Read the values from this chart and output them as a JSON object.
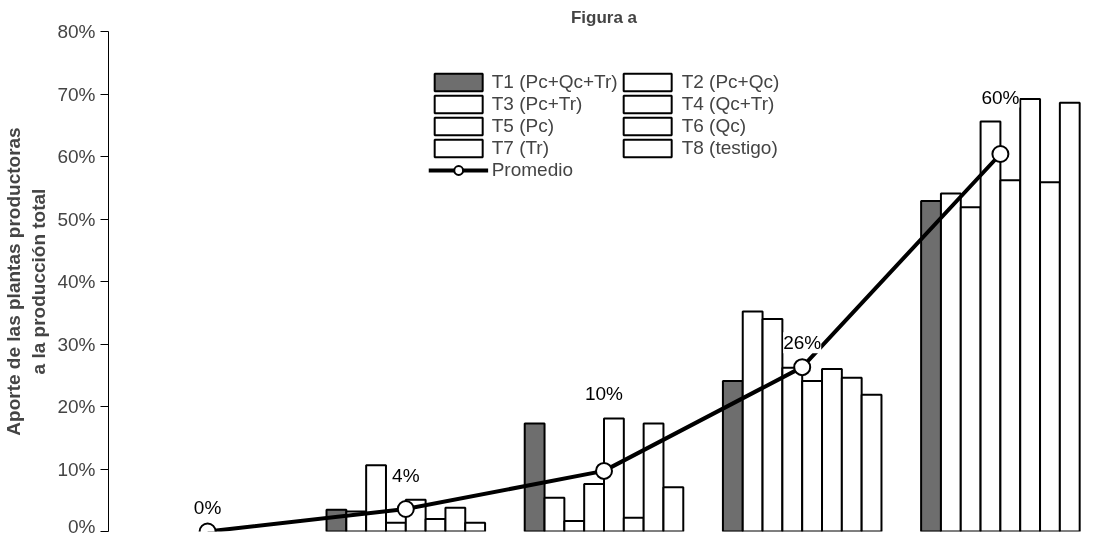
{
  "chart_data": {
    "type": "bar",
    "title": "Figura a",
    "ylabel": "Aporte de las plantas productoras\na la producción total",
    "categories": [
      null,
      null,
      null,
      null,
      null
    ],
    "series": [
      {
        "name": "T1 (Pc+Qc+Tr)",
        "color": "#6e6e6e",
        "values": [
          null,
          3.5,
          17.3,
          24.1,
          52.9
        ]
      },
      {
        "name": "T2 (Pc+Qc)",
        "color": "#ffffff",
        "values": [
          null,
          3.2,
          5.4,
          35.2,
          54.1
        ]
      },
      {
        "name": "T3 (Pc+Tr)",
        "color": "#ffffff",
        "values": [
          null,
          10.6,
          1.7,
          34.0,
          51.9
        ]
      },
      {
        "name": "T4 (Qc+Tr)",
        "color": "#ffffff",
        "values": [
          null,
          1.4,
          7.6,
          26.2,
          65.6
        ]
      },
      {
        "name": "T5 (Pc)",
        "color": "#ffffff",
        "values": [
          null,
          5.1,
          18.1,
          24.1,
          56.2
        ]
      },
      {
        "name": "T6 (Qc)",
        "color": "#ffffff",
        "values": [
          null,
          2.0,
          2.2,
          26.0,
          69.2
        ]
      },
      {
        "name": "T7 (Tr)",
        "color": "#ffffff",
        "values": [
          null,
          3.8,
          17.3,
          24.6,
          55.9
        ]
      },
      {
        "name": "T8 (testigo)",
        "color": "#ffffff",
        "values": [
          null,
          1.4,
          7.1,
          21.9,
          68.6
        ]
      },
      {
        "name": "Promedio",
        "type": "line",
        "color": "#000000",
        "marker": "circle",
        "values": [
          0,
          3.6,
          9.7,
          26.3,
          60.4
        ],
        "value_labels": [
          "0%",
          "4%",
          "10%",
          "26%",
          "60%"
        ]
      }
    ],
    "ylim": [
      0,
      80
    ],
    "yticks": [
      {
        "value": 0,
        "label": "0%"
      },
      {
        "value": 10,
        "label": "10%"
      },
      {
        "value": 20,
        "label": "20%"
      },
      {
        "value": 30,
        "label": "30%"
      },
      {
        "value": 40,
        "label": "40%"
      },
      {
        "value": 50,
        "label": "50%"
      },
      {
        "value": 60,
        "label": "60%"
      },
      {
        "value": 70,
        "label": "70%"
      },
      {
        "value": 80,
        "label": "80%"
      }
    ],
    "grid": false,
    "legend": "top",
    "tick_labels": "y"
  }
}
